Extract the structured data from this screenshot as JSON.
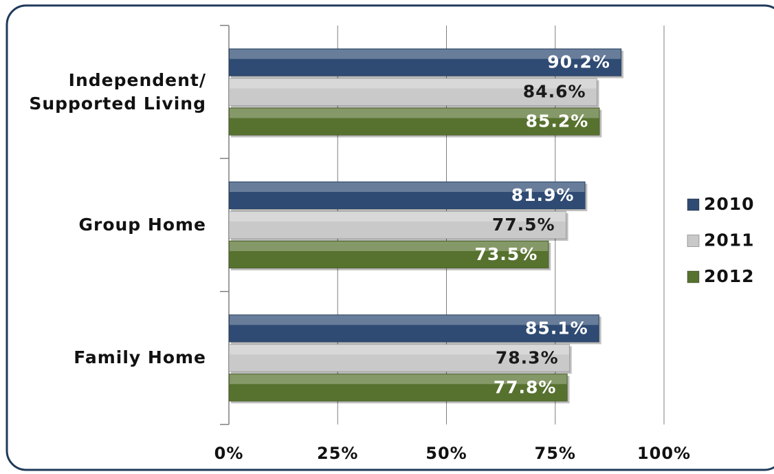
{
  "chart_data": {
    "type": "bar",
    "orientation": "horizontal",
    "categories": [
      "Independent/ Supported Living",
      "Group Home",
      "Family Home"
    ],
    "series": [
      {
        "name": "2010",
        "color": "#2f4b73",
        "label_color": "#ffffff",
        "values": [
          90.2,
          81.9,
          85.1
        ],
        "value_labels": [
          "90.2%",
          "81.9%",
          "85.1%"
        ]
      },
      {
        "name": "2011",
        "color": "#c9c9c9",
        "label_color": "#1a1a1a",
        "values": [
          84.6,
          77.5,
          78.3
        ],
        "value_labels": [
          "84.6%",
          "77.5%",
          "78.3%"
        ]
      },
      {
        "name": "2012",
        "color": "#57712f",
        "label_color": "#ffffff",
        "values": [
          85.2,
          73.5,
          77.8
        ],
        "value_labels": [
          "85.2%",
          "73.5%",
          "77.8%"
        ]
      }
    ],
    "xlim": [
      0,
      100
    ],
    "xticks": [
      {
        "value": 0,
        "label": "0%"
      },
      {
        "value": 25,
        "label": "25%"
      },
      {
        "value": 50,
        "label": "50%"
      },
      {
        "value": 75,
        "label": "75%"
      },
      {
        "value": 100,
        "label": "100%"
      }
    ],
    "grid": true,
    "legend": "right"
  }
}
